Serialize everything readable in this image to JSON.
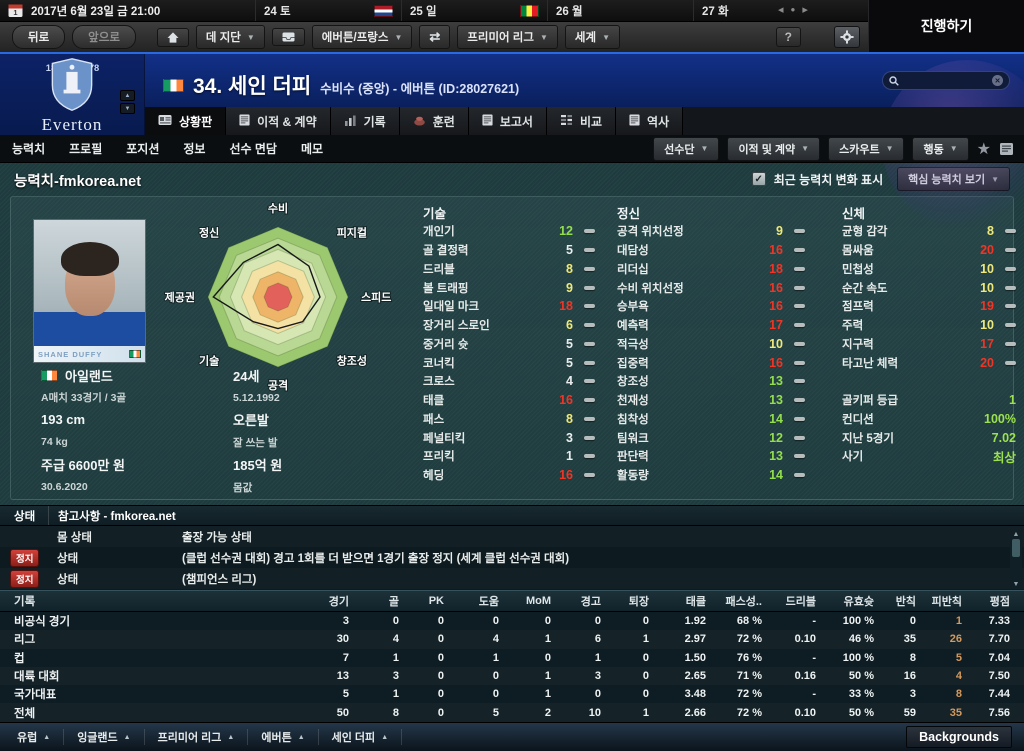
{
  "colors": {
    "attr_low": "#e9eded",
    "attr_mid": "#efe97b",
    "attr_good": "#93de4d",
    "attr_high": "#f23425",
    "positive_green": "#9ce24e",
    "foul_orange": "#d49a5e",
    "accent_blue": "#2a6ae0"
  },
  "top_bar": {
    "date": "2017년 6월 23일 금 21:00",
    "days": [
      {
        "label": "24 토",
        "flag": "netherlands"
      },
      {
        "label": "25 일",
        "flag": "senegal"
      },
      {
        "label": "26 월",
        "flag": null
      },
      {
        "label": "27 화",
        "flag": null
      }
    ],
    "continue_label": "진행하기"
  },
  "toolbar": {
    "back": "뒤로",
    "forward": "앞으로",
    "manager": "데 지단",
    "club_nav": "에버튼/프랑스",
    "league_nav": "프리미어 리그",
    "world_nav": "세계",
    "help_label": "?"
  },
  "header": {
    "crest_year_left": "18",
    "crest_year_right": "78",
    "club_name": "Everton",
    "player_number_name": "34. 세인 더피",
    "player_meta": "수비수 (중앙) - 에버튼 (ID:28027621)",
    "photo_caption": "SHANE DUFFY"
  },
  "tabs": {
    "main": [
      {
        "label": "상황판",
        "icon": "card",
        "active": true
      },
      {
        "label": "이적 & 계약",
        "icon": "doc",
        "active": false
      },
      {
        "label": "기록",
        "icon": "bars",
        "active": false
      },
      {
        "label": "훈련",
        "icon": "cone",
        "active": false
      },
      {
        "label": "보고서",
        "icon": "doc",
        "active": false
      },
      {
        "label": "비교",
        "icon": "compare",
        "active": false
      },
      {
        "label": "역사",
        "icon": "doc",
        "active": false
      }
    ],
    "sub": [
      "능력치",
      "프로필",
      "포지션",
      "정보",
      "선수 면담",
      "메모"
    ],
    "action_buttons": [
      "선수단",
      "이적 및 계약",
      "스카우트",
      "행동"
    ]
  },
  "attributes_panel": {
    "title": "능력치-fmkorea.net",
    "recent_change_label": "최근 능력치 변화 표시",
    "key_attr_dropdown": "핵심 능력치 보기",
    "info_left": [
      {
        "text": "아일랜드",
        "big": true,
        "flag": true
      },
      {
        "text": "A매치 33경기 / 3골",
        "big": false
      },
      {
        "text": "193 cm",
        "big": true
      },
      {
        "text": "74 kg",
        "big": false
      },
      {
        "text": "주급 6600만 원",
        "big": true
      },
      {
        "text": "30.6.2020",
        "big": false
      }
    ],
    "info_right": [
      {
        "text": "24세",
        "big": true
      },
      {
        "text": "5.12.1992",
        "big": false
      },
      {
        "text": "오른발",
        "big": true
      },
      {
        "text": "잘 쓰는 발",
        "big": false
      },
      {
        "text": "185억 원",
        "big": true
      },
      {
        "text": "몸값",
        "big": false
      }
    ],
    "technical": {
      "header": "기술",
      "items": [
        [
          "개인기",
          12
        ],
        [
          "골 결정력",
          5
        ],
        [
          "드리블",
          8
        ],
        [
          "볼 트래핑",
          9
        ],
        [
          "일대일 마크",
          18
        ],
        [
          "장거리 스로인",
          6
        ],
        [
          "중거리 슛",
          5
        ],
        [
          "코너킥",
          5
        ],
        [
          "크로스",
          4
        ],
        [
          "태클",
          16
        ],
        [
          "패스",
          8
        ],
        [
          "페널티킥",
          3
        ],
        [
          "프리킥",
          1
        ],
        [
          "헤딩",
          16
        ]
      ]
    },
    "mental": {
      "header": "정신",
      "items": [
        [
          "공격 위치선정",
          9
        ],
        [
          "대담성",
          16
        ],
        [
          "리더십",
          18
        ],
        [
          "수비 위치선정",
          16
        ],
        [
          "승부욕",
          16
        ],
        [
          "예측력",
          17
        ],
        [
          "적극성",
          10
        ],
        [
          "집중력",
          16
        ],
        [
          "창조성",
          13
        ],
        [
          "천재성",
          13
        ],
        [
          "침착성",
          14
        ],
        [
          "팀워크",
          12
        ],
        [
          "판단력",
          13
        ],
        [
          "활동량",
          14
        ]
      ]
    },
    "physical": {
      "header": "신체",
      "items": [
        [
          "균형 감각",
          8
        ],
        [
          "몸싸움",
          20
        ],
        [
          "민첩성",
          10
        ],
        [
          "순간 속도",
          10
        ],
        [
          "점프력",
          19
        ],
        [
          "주력",
          10
        ],
        [
          "지구력",
          17
        ],
        [
          "타고난 체력",
          20
        ]
      ]
    },
    "extra": [
      [
        "골키퍼 등급",
        "1"
      ],
      [
        "컨디션",
        "100%"
      ],
      [
        "지난 5경기",
        "7.02"
      ],
      [
        "사기",
        "최상"
      ]
    ]
  },
  "chart_data": {
    "type": "radar",
    "title": "능력치 레이더",
    "categories": [
      "수비",
      "피지컬",
      "스피드",
      "창조성",
      "공격",
      "기술",
      "제공권",
      "정신"
    ],
    "values": [
      15,
      12.5,
      12,
      10,
      9,
      10,
      18.5,
      14
    ],
    "scale_max": 20,
    "ring_colors": [
      "#9cc86f",
      "#b9d893",
      "#d6e7b4",
      "#f3e2a3",
      "#eeb569",
      "#e2625b"
    ]
  },
  "status": {
    "header_left": "상태",
    "header_right": "참고사항 - fmkorea.net",
    "rows": [
      {
        "badge": null,
        "label": "몸 상태",
        "text": "출장 가능 상태"
      },
      {
        "badge": "정지",
        "label": "상태",
        "text": "(클럽 선수권 대회) 경고 1회를 더 받으면 1경기 출장 정지 (세계 클럽 선수권 대회)"
      },
      {
        "badge": "정지",
        "label": "상태",
        "text": "(챔피언스 리그)"
      }
    ]
  },
  "stats_table": {
    "first_header": "기록",
    "headers": [
      "경기",
      "골",
      "PK",
      "도움",
      "MoM",
      "경고",
      "퇴장",
      "태클",
      "패스성..",
      "드리블",
      "유효슛",
      "반칙",
      "피반칙",
      "평점"
    ],
    "rows": [
      {
        "name": "비공식 경기",
        "values": [
          "3",
          "0",
          "0",
          "0",
          "0",
          "0",
          "0",
          "1.92",
          "68 %",
          "-",
          "100 %",
          "0",
          "1",
          "7.33"
        ]
      },
      {
        "name": "리그",
        "values": [
          "30",
          "4",
          "0",
          "4",
          "1",
          "6",
          "1",
          "2.97",
          "72 %",
          "0.10",
          "46 %",
          "35",
          "26",
          "7.70"
        ]
      },
      {
        "name": "컵",
        "values": [
          "7",
          "1",
          "0",
          "1",
          "0",
          "1",
          "0",
          "1.50",
          "76 %",
          "-",
          "100 %",
          "8",
          "5",
          "7.04"
        ]
      },
      {
        "name": "대륙 대회",
        "values": [
          "13",
          "3",
          "0",
          "0",
          "1",
          "3",
          "0",
          "2.65",
          "71 %",
          "0.16",
          "50 %",
          "16",
          "4",
          "7.50"
        ]
      },
      {
        "name": "국가대표",
        "values": [
          "5",
          "1",
          "0",
          "0",
          "1",
          "0",
          "0",
          "3.48",
          "72 %",
          "-",
          "33 %",
          "3",
          "8",
          "7.44"
        ]
      },
      {
        "name": "전체",
        "values": [
          "50",
          "8",
          "0",
          "5",
          "2",
          "10",
          "1",
          "2.66",
          "72 %",
          "0.10",
          "50 %",
          "59",
          "35",
          "7.56"
        ]
      }
    ]
  },
  "bottom_bar": {
    "breadcrumbs": [
      "유럽",
      "잉글랜드",
      "프리미어 리그",
      "에버튼",
      "세인 더피"
    ],
    "backgrounds_label": "Backgrounds"
  }
}
